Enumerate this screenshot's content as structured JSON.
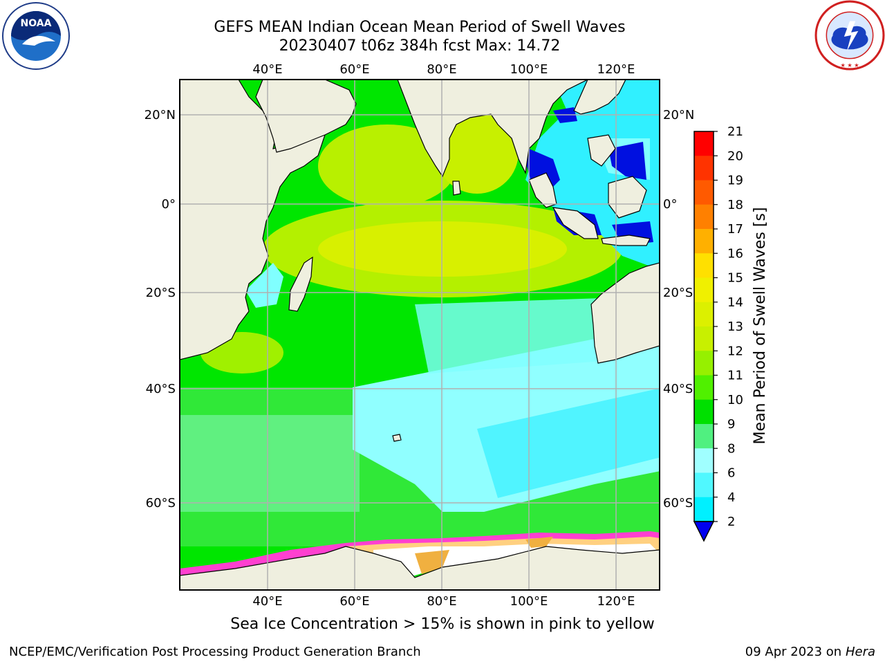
{
  "title": {
    "line1": "GEFS MEAN Indian Ocean Mean Period of Swell Waves",
    "line2": "20230407 t06z 384h fcst   Max: 14.72"
  },
  "logos": {
    "left": "noaa-logo",
    "left_text": "NOAA",
    "right": "nws-logo"
  },
  "map": {
    "top_lon_labels": [
      "40°E",
      "60°E",
      "80°E",
      "100°E",
      "120°E"
    ],
    "bottom_lon_labels": [
      "40°E",
      "60°E",
      "80°E",
      "100°E",
      "120°E"
    ],
    "left_lat_labels": [
      "20°N",
      "0°",
      "20°S",
      "40°S",
      "60°S"
    ],
    "right_lat_labels": [
      "20°N",
      "0°",
      "20°S",
      "40°S",
      "60°S"
    ],
    "land_color": "#efefdf",
    "grid_color": "#b0b0b0"
  },
  "colorbar": {
    "label": "Mean Period of Swell Waves [s]",
    "ticks": [
      "21",
      "20",
      "19",
      "18",
      "17",
      "16",
      "15",
      "14",
      "13",
      "12",
      "11",
      "10",
      "9",
      "8",
      "6",
      "4",
      "2"
    ],
    "colors": [
      "#ff0000",
      "#ff3300",
      "#ff5a00",
      "#ff8000",
      "#ffb000",
      "#ffe000",
      "#f0f000",
      "#dcf000",
      "#c8f000",
      "#96f000",
      "#50f000",
      "#00e000",
      "#50f080",
      "#a0ffff",
      "#50f8ff",
      "#00f0ff",
      "#0080ff"
    ],
    "under_color": "#0000f0"
  },
  "footnote": "Sea Ice Concentration > 15% is shown in pink to yellow",
  "credits": {
    "left": "NCEP/EMC/Verification Post Processing Product Generation Branch",
    "right_date": "09 Apr 2023 on ",
    "right_host": "Hera"
  }
}
